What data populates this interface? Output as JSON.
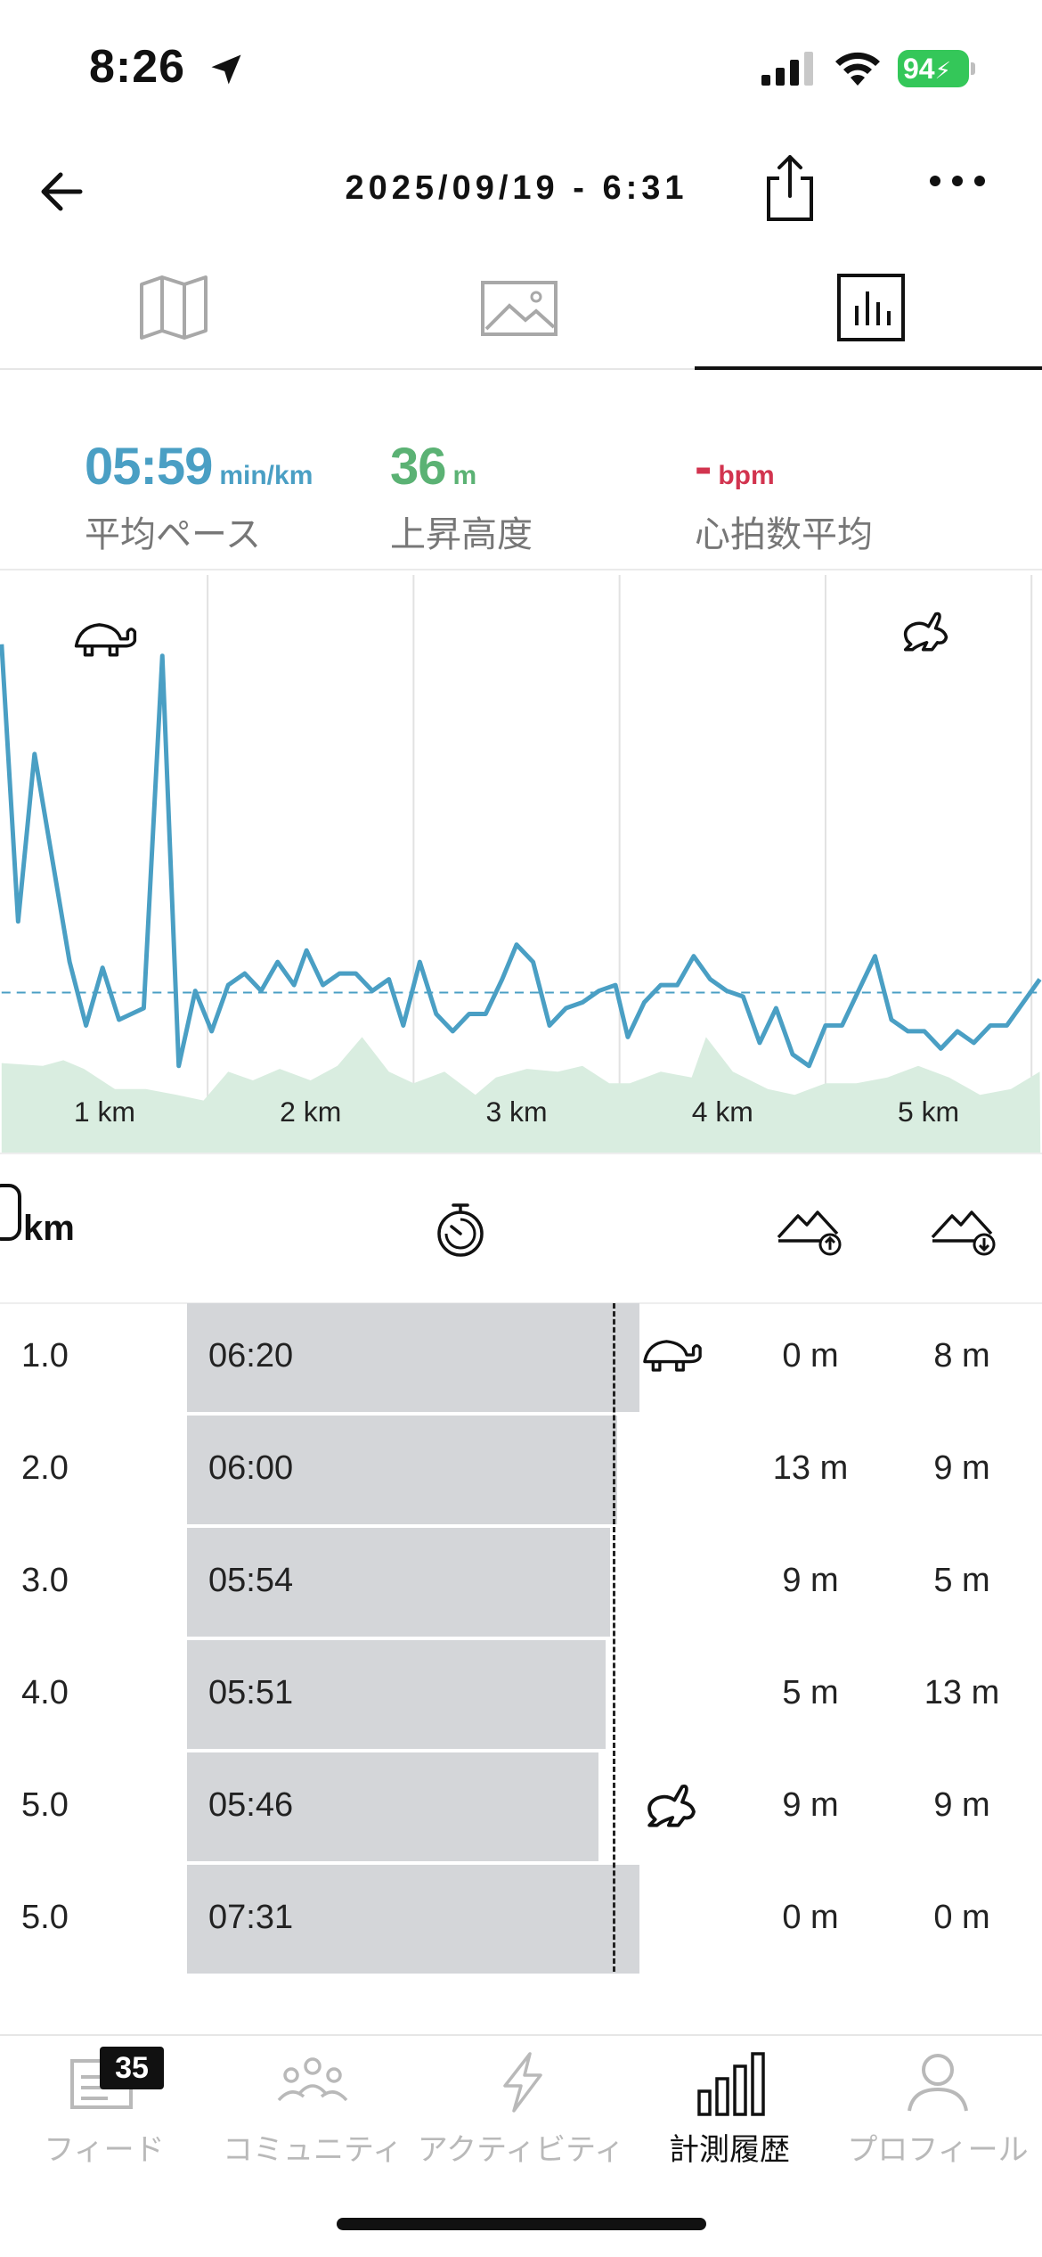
{
  "status": {
    "time": "8:26",
    "battery": "94"
  },
  "header": {
    "title": "2025/09/19 - 6:31"
  },
  "view_tabs": [
    {
      "name": "map"
    },
    {
      "name": "photo"
    },
    {
      "name": "stats",
      "active": true
    }
  ],
  "summary": {
    "pace": {
      "value": "05:59",
      "unit": "min/km",
      "label": "平均ペース",
      "color": "#4a9fc4"
    },
    "ascent": {
      "value": "36",
      "unit": "m",
      "label": "上昇高度",
      "color": "#5bb274"
    },
    "heart": {
      "value": "-",
      "unit": "bpm",
      "label": "心拍数平均",
      "color": "#d2344f"
    }
  },
  "chart_data": {
    "type": "line",
    "categories": [
      "1 km",
      "2 km",
      "3 km",
      "4 km",
      "5 km"
    ],
    "pace_points": [
      [
        0.0,
        0.88
      ],
      [
        0.08,
        0.4
      ],
      [
        0.16,
        0.69
      ],
      [
        0.33,
        0.33
      ],
      [
        0.41,
        0.22
      ],
      [
        0.49,
        0.32
      ],
      [
        0.57,
        0.23
      ],
      [
        0.69,
        0.25
      ],
      [
        0.78,
        0.86
      ],
      [
        0.86,
        0.15
      ],
      [
        0.94,
        0.28
      ],
      [
        1.02,
        0.21
      ],
      [
        1.1,
        0.29
      ],
      [
        1.18,
        0.31
      ],
      [
        1.26,
        0.28
      ],
      [
        1.34,
        0.33
      ],
      [
        1.42,
        0.29
      ],
      [
        1.48,
        0.35
      ],
      [
        1.56,
        0.29
      ],
      [
        1.64,
        0.31
      ],
      [
        1.72,
        0.31
      ],
      [
        1.8,
        0.28
      ],
      [
        1.88,
        0.3
      ],
      [
        1.95,
        0.22
      ],
      [
        2.03,
        0.33
      ],
      [
        2.11,
        0.24
      ],
      [
        2.19,
        0.21
      ],
      [
        2.27,
        0.24
      ],
      [
        2.35,
        0.24
      ],
      [
        2.43,
        0.3
      ],
      [
        2.5,
        0.36
      ],
      [
        2.58,
        0.33
      ],
      [
        2.66,
        0.22
      ],
      [
        2.74,
        0.25
      ],
      [
        2.82,
        0.26
      ],
      [
        2.9,
        0.28
      ],
      [
        2.98,
        0.29
      ],
      [
        3.04,
        0.2
      ],
      [
        3.12,
        0.26
      ],
      [
        3.2,
        0.29
      ],
      [
        3.28,
        0.29
      ],
      [
        3.36,
        0.34
      ],
      [
        3.44,
        0.3
      ],
      [
        3.52,
        0.28
      ],
      [
        3.6,
        0.27
      ],
      [
        3.68,
        0.19
      ],
      [
        3.76,
        0.25
      ],
      [
        3.84,
        0.17
      ],
      [
        3.92,
        0.15
      ],
      [
        4.0,
        0.22
      ],
      [
        4.08,
        0.22
      ],
      [
        4.16,
        0.28
      ],
      [
        4.24,
        0.34
      ],
      [
        4.32,
        0.23
      ],
      [
        4.4,
        0.21
      ],
      [
        4.48,
        0.21
      ],
      [
        4.56,
        0.18
      ],
      [
        4.64,
        0.21
      ],
      [
        4.72,
        0.19
      ],
      [
        4.8,
        0.22
      ],
      [
        4.88,
        0.22
      ],
      [
        4.96,
        0.26
      ],
      [
        5.04,
        0.3
      ]
    ],
    "avg_pace_level": 0.277,
    "elevation_points": [
      [
        0.0,
        0.155
      ],
      [
        0.2,
        0.15
      ],
      [
        0.3,
        0.16
      ],
      [
        0.4,
        0.145
      ],
      [
        0.55,
        0.11
      ],
      [
        0.7,
        0.11
      ],
      [
        0.85,
        0.1
      ],
      [
        0.98,
        0.09
      ],
      [
        1.1,
        0.14
      ],
      [
        1.22,
        0.125
      ],
      [
        1.35,
        0.145
      ],
      [
        1.5,
        0.125
      ],
      [
        1.63,
        0.15
      ],
      [
        1.75,
        0.2
      ],
      [
        1.88,
        0.14
      ],
      [
        2.0,
        0.12
      ],
      [
        2.15,
        0.14
      ],
      [
        2.3,
        0.1
      ],
      [
        2.4,
        0.13
      ],
      [
        2.55,
        0.145
      ],
      [
        2.7,
        0.14
      ],
      [
        2.82,
        0.15
      ],
      [
        2.95,
        0.12
      ],
      [
        3.05,
        0.12
      ],
      [
        3.2,
        0.14
      ],
      [
        3.35,
        0.13
      ],
      [
        3.42,
        0.2
      ],
      [
        3.55,
        0.14
      ],
      [
        3.72,
        0.11
      ],
      [
        3.85,
        0.1
      ],
      [
        4.0,
        0.12
      ],
      [
        4.15,
        0.12
      ],
      [
        4.3,
        0.13
      ],
      [
        4.45,
        0.15
      ],
      [
        4.6,
        0.13
      ],
      [
        4.75,
        0.1
      ],
      [
        4.9,
        0.11
      ],
      [
        5.04,
        0.14
      ]
    ],
    "pace_color": "#4a9fc4",
    "elevation_color": "#d9ede0"
  },
  "table": {
    "km_header": "km",
    "rows": [
      {
        "km": "1.0",
        "time": "06:20",
        "bar_ratio": 1.0,
        "up": "0 m",
        "down": "8 m",
        "icon": "turtle"
      },
      {
        "km": "2.0",
        "time": "06:00",
        "bar_ratio": 0.95,
        "up": "13 m",
        "down": "9 m",
        "icon": ""
      },
      {
        "km": "3.0",
        "time": "05:54",
        "bar_ratio": 0.935,
        "up": "9 m",
        "down": "5 m",
        "icon": ""
      },
      {
        "km": "4.0",
        "time": "05:51",
        "bar_ratio": 0.925,
        "up": "5 m",
        "down": "13 m",
        "icon": ""
      },
      {
        "km": "5.0",
        "time": "05:46",
        "bar_ratio": 0.91,
        "up": "9 m",
        "down": "9 m",
        "icon": "rabbit"
      },
      {
        "km": "5.0",
        "time": "07:31",
        "bar_ratio": 1.0,
        "up": "0 m",
        "down": "0 m",
        "icon": ""
      }
    ]
  },
  "tab_bar": {
    "feed": {
      "label": "フィード",
      "badge": "35"
    },
    "community": {
      "label": "コミュニティ"
    },
    "activity": {
      "label": "アクティビティ"
    },
    "history": {
      "label": "計測履歴",
      "active": true
    },
    "profile": {
      "label": "プロフィール"
    }
  }
}
